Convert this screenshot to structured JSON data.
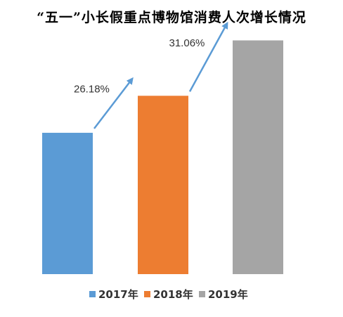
{
  "chart_data": {
    "type": "bar",
    "title": "“五一”小长假重点博物馆消费人次增长情况",
    "categories": [
      "2017年",
      "2018年",
      "2019年"
    ],
    "series": [
      {
        "name": "2017年",
        "color": "#5B9BD5",
        "value": 100
      },
      {
        "name": "2018年",
        "color": "#ED7D31",
        "value": 126.18
      },
      {
        "name": "2019年",
        "color": "#A5A5A5",
        "value": 165.37
      }
    ],
    "annotations": [
      {
        "text": "26.18%",
        "from": "2017年",
        "to": "2018年"
      },
      {
        "text": "31.06%",
        "from": "2018年",
        "to": "2019年"
      }
    ],
    "ylim": [
      0,
      185
    ],
    "axes_visible": false,
    "grid": false,
    "legend_position": "bottom",
    "arrow_color": "#5B9BD5"
  }
}
